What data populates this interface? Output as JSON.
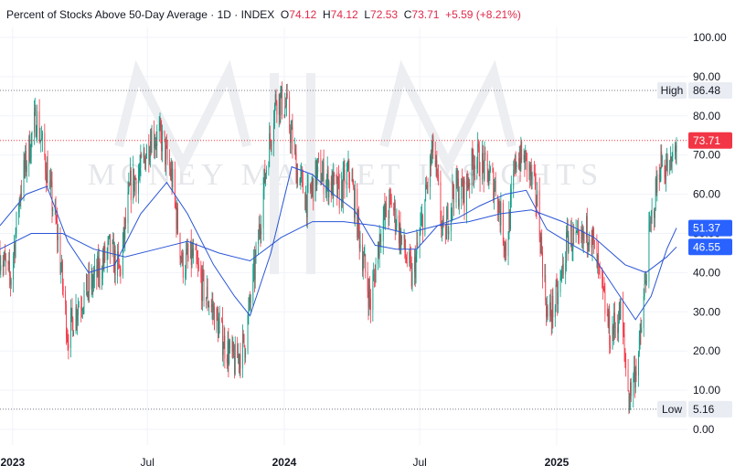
{
  "header": {
    "title": "Percent of Stocks Above 50-Day Average · 1D · INDEX",
    "o_key": "O",
    "o_val": "74.12",
    "h_key": "H",
    "h_val": "74.12",
    "l_key": "L",
    "l_val": "72.53",
    "c_key": "C",
    "c_val": "73.71",
    "change": "+5.59 (+8.21%)"
  },
  "watermark": "MONEY MARKET INSIGHTS",
  "colors": {
    "up": "#089981",
    "down": "#f23645",
    "ma": "#2a55d6",
    "last_badge": "#f23645",
    "ma_badge": "#2962ff",
    "hilo_badge": "#e9ecf2"
  },
  "chart_data": {
    "type": "candlestick",
    "ylim": [
      0,
      100
    ],
    "yticks": [
      "100.00",
      "90.00",
      "80.00",
      "70.00",
      "60.00",
      "50.00",
      "40.00",
      "30.00",
      "20.00",
      "10.00",
      "0.00"
    ],
    "xticks": [
      {
        "label": "2023",
        "date": "2023-01-01"
      },
      {
        "label": "Jul",
        "date": "2023-07-01"
      },
      {
        "label": "2024",
        "date": "2024-01-01"
      },
      {
        "label": "Jul",
        "date": "2024-07-01"
      },
      {
        "label": "2025",
        "date": "2025-01-01"
      }
    ],
    "high_label": "High",
    "high_value": "86.48",
    "low_label": "Low",
    "low_value": "5.16",
    "last_value": "73.71",
    "ma_fast_value": "51.37",
    "ma_slow_value": "46.55",
    "close_path": [
      [
        "2022-12-15",
        45
      ],
      [
        "2022-12-29",
        38
      ],
      [
        "2023-01-12",
        62
      ],
      [
        "2023-02-02",
        80
      ],
      [
        "2023-02-16",
        66
      ],
      [
        "2023-03-02",
        50
      ],
      [
        "2023-03-16",
        24
      ],
      [
        "2023-03-30",
        32
      ],
      [
        "2023-04-20",
        38
      ],
      [
        "2023-05-11",
        46
      ],
      [
        "2023-05-25",
        40
      ],
      [
        "2023-06-08",
        62
      ],
      [
        "2023-06-22",
        66
      ],
      [
        "2023-07-06",
        75
      ],
      [
        "2023-07-20",
        74
      ],
      [
        "2023-08-03",
        64
      ],
      [
        "2023-08-17",
        42
      ],
      [
        "2023-08-31",
        44
      ],
      [
        "2023-09-14",
        36
      ],
      [
        "2023-09-28",
        30
      ],
      [
        "2023-10-12",
        22
      ],
      [
        "2023-10-26",
        17
      ],
      [
        "2023-11-09",
        22
      ],
      [
        "2023-11-23",
        42
      ],
      [
        "2023-12-07",
        66
      ],
      [
        "2023-12-21",
        85
      ],
      [
        "2024-01-04",
        82
      ],
      [
        "2024-01-18",
        66
      ],
      [
        "2024-02-01",
        58
      ],
      [
        "2024-02-15",
        66
      ],
      [
        "2024-03-01",
        63
      ],
      [
        "2024-03-15",
        60
      ],
      [
        "2024-03-29",
        66
      ],
      [
        "2024-04-12",
        48
      ],
      [
        "2024-04-26",
        32
      ],
      [
        "2024-05-10",
        52
      ],
      [
        "2024-05-24",
        58
      ],
      [
        "2024-06-07",
        48
      ],
      [
        "2024-06-21",
        38
      ],
      [
        "2024-07-05",
        54
      ],
      [
        "2024-07-19",
        72
      ],
      [
        "2024-08-02",
        48
      ],
      [
        "2024-08-16",
        62
      ],
      [
        "2024-08-30",
        60
      ],
      [
        "2024-09-13",
        70
      ],
      [
        "2024-09-27",
        66
      ],
      [
        "2024-10-11",
        62
      ],
      [
        "2024-10-25",
        46
      ],
      [
        "2024-11-08",
        70
      ],
      [
        "2024-11-22",
        68
      ],
      [
        "2024-12-06",
        58
      ],
      [
        "2024-12-20",
        28
      ],
      [
        "2025-01-03",
        34
      ],
      [
        "2025-01-17",
        50
      ],
      [
        "2025-01-31",
        46
      ],
      [
        "2025-02-14",
        52
      ],
      [
        "2025-02-28",
        38
      ],
      [
        "2025-03-14",
        24
      ],
      [
        "2025-03-28",
        30
      ],
      [
        "2025-04-08",
        8
      ],
      [
        "2025-04-22",
        20
      ],
      [
        "2025-05-06",
        50
      ],
      [
        "2025-05-20",
        68
      ],
      [
        "2025-06-03",
        66
      ],
      [
        "2025-06-11",
        73.71
      ]
    ],
    "ma_fast_path": [
      [
        "2022-12-15",
        52
      ],
      [
        "2023-01-19",
        60
      ],
      [
        "2023-02-16",
        62
      ],
      [
        "2023-03-16",
        48
      ],
      [
        "2023-04-13",
        40
      ],
      [
        "2023-05-18",
        42
      ],
      [
        "2023-06-22",
        55
      ],
      [
        "2023-07-27",
        63
      ],
      [
        "2023-08-24",
        55
      ],
      [
        "2023-09-28",
        42
      ],
      [
        "2023-10-26",
        34
      ],
      [
        "2023-11-16",
        29
      ],
      [
        "2023-12-14",
        45
      ],
      [
        "2024-01-11",
        67
      ],
      [
        "2024-02-08",
        65
      ],
      [
        "2024-03-07",
        60
      ],
      [
        "2024-04-04",
        56
      ],
      [
        "2024-05-02",
        47
      ],
      [
        "2024-05-30",
        46
      ],
      [
        "2024-06-27",
        46
      ],
      [
        "2024-07-25",
        52
      ],
      [
        "2024-08-22",
        54
      ],
      [
        "2024-09-19",
        57
      ],
      [
        "2024-10-24",
        60
      ],
      [
        "2024-11-21",
        61
      ],
      [
        "2024-12-19",
        51
      ],
      [
        "2025-01-23",
        47
      ],
      [
        "2025-02-20",
        44
      ],
      [
        "2025-03-20",
        36
      ],
      [
        "2025-04-17",
        28
      ],
      [
        "2025-05-08",
        34
      ],
      [
        "2025-05-29",
        46
      ],
      [
        "2025-06-11",
        51.37
      ]
    ],
    "ma_slow_path": [
      [
        "2022-12-15",
        46
      ],
      [
        "2023-01-26",
        50
      ],
      [
        "2023-03-09",
        50
      ],
      [
        "2023-04-20",
        46
      ],
      [
        "2023-06-01",
        44
      ],
      [
        "2023-07-13",
        46
      ],
      [
        "2023-08-24",
        48
      ],
      [
        "2023-10-05",
        45
      ],
      [
        "2023-11-16",
        43
      ],
      [
        "2023-12-28",
        49
      ],
      [
        "2024-02-08",
        53
      ],
      [
        "2024-03-21",
        53
      ],
      [
        "2024-05-02",
        52
      ],
      [
        "2024-06-13",
        50
      ],
      [
        "2024-07-25",
        52
      ],
      [
        "2024-09-05",
        53
      ],
      [
        "2024-10-17",
        55
      ],
      [
        "2024-11-28",
        56
      ],
      [
        "2025-01-09",
        53
      ],
      [
        "2025-02-20",
        49
      ],
      [
        "2025-04-03",
        42
      ],
      [
        "2025-05-01",
        40
      ],
      [
        "2025-05-29",
        44
      ],
      [
        "2025-06-11",
        46.55
      ]
    ]
  }
}
